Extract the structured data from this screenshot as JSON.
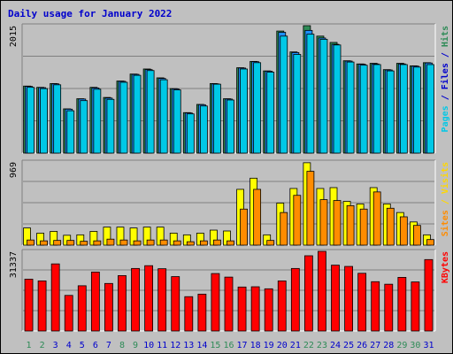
{
  "chart_data": {
    "type": "bar",
    "title": "Daily usage for January 2022",
    "categories": [
      "1",
      "2",
      "3",
      "4",
      "5",
      "6",
      "7",
      "8",
      "9",
      "10",
      "11",
      "12",
      "13",
      "14",
      "15",
      "16",
      "17",
      "18",
      "19",
      "20",
      "21",
      "22",
      "23",
      "24",
      "25",
      "26",
      "27",
      "28",
      "29",
      "30",
      "31"
    ],
    "weekend_days": [
      "1",
      "2",
      "8",
      "9",
      "15",
      "16",
      "22",
      "23",
      "29",
      "30"
    ],
    "panels": [
      {
        "id": "hits",
        "ymax": 2015,
        "ymax_label": "2015",
        "right_label": [
          {
            "text": "Pages",
            "color": "#00c8e6"
          },
          {
            "text": " / ",
            "color": "#0000cc"
          },
          {
            "text": "Files",
            "color": "#0000cc"
          },
          {
            "text": " / ",
            "color": "#0000cc"
          },
          {
            "text": "Hits",
            "color": "#2e8b57"
          }
        ],
        "series": [
          {
            "name": "Hits",
            "color": "#2e8b57",
            "values": [
              1060,
              1040,
              1100,
              700,
              860,
              1040,
              880,
              1140,
              1250,
              1330,
              1190,
              1020,
              640,
              770,
              1100,
              860,
              1350,
              1450,
              1300,
              1930,
              1600,
              2015,
              1850,
              1750,
              1460,
              1410,
              1420,
              1320,
              1420,
              1380,
              1430
            ]
          },
          {
            "name": "Files",
            "color": "#1e90ff",
            "values": [
              1055,
              1035,
              1095,
              695,
              855,
              1030,
              870,
              1135,
              1245,
              1320,
              1180,
              1015,
              635,
              765,
              1095,
              855,
              1345,
              1445,
              1295,
              1910,
              1590,
              1940,
              1820,
              1720,
              1455,
              1405,
              1410,
              1315,
              1410,
              1375,
              1425
            ]
          },
          {
            "name": "Pages",
            "color": "#00c8e6",
            "values": [
              1040,
              1020,
              1080,
              670,
              830,
              1010,
              850,
              1120,
              1230,
              1305,
              1160,
              1000,
              620,
              745,
              1090,
              840,
              1330,
              1430,
              1280,
              1850,
              1560,
              1880,
              1800,
              1710,
              1440,
              1390,
              1400,
              1300,
              1400,
              1360,
              1400
            ]
          }
        ]
      },
      {
        "id": "visits",
        "ymax": 969,
        "ymax_label": "969",
        "right_label": [
          {
            "text": "Sites",
            "color": "#ff8c00"
          },
          {
            "text": " / ",
            "color": "#ffd700"
          },
          {
            "text": "Visits",
            "color": "#ffd700"
          }
        ],
        "series": [
          {
            "name": "Visits",
            "color": "#ffff00",
            "values": [
              200,
              140,
              160,
              115,
              120,
              160,
              210,
              210,
              200,
              210,
              210,
              140,
              120,
              140,
              175,
              165,
              650,
              780,
              120,
              490,
              660,
              960,
              660,
              670,
              510,
              480,
              670,
              480,
              380,
              270,
              120
            ]
          },
          {
            "name": "Sites",
            "color": "#ff8c00",
            "values": [
              60,
              50,
              55,
              55,
              45,
              50,
              70,
              60,
              50,
              60,
              60,
              50,
              40,
              50,
              60,
              50,
              420,
              650,
              55,
              380,
              580,
              860,
              530,
              520,
              460,
              420,
              620,
              430,
              330,
              230,
              65
            ]
          }
        ]
      },
      {
        "id": "kbytes",
        "ymax": 31337,
        "ymax_label": "31337",
        "right_label": [
          {
            "text": "KBytes",
            "color": "#ff0000"
          }
        ],
        "series": [
          {
            "name": "KBytes",
            "color": "#ff0000",
            "values": [
              20400,
              19700,
              26400,
              14000,
              17800,
              23200,
              18700,
              21800,
              24600,
              25700,
              24500,
              21400,
              13500,
              14500,
              22600,
              21200,
              17300,
              17400,
              16600,
              19700,
              24600,
              29600,
              31337,
              25900,
              25400,
              22700,
              19400,
              18400,
              21100,
              19300,
              28100
            ]
          }
        ]
      }
    ]
  }
}
